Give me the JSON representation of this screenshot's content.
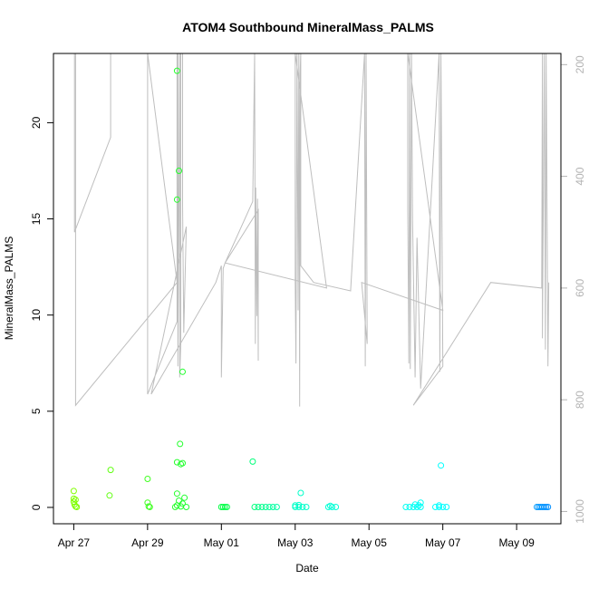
{
  "chart_data": {
    "type": "scatter",
    "title": "ATOM4 Southbound MineralMass_PALMS",
    "xlabel": "Date",
    "ylabel": "MineralMass_PALMS",
    "x_ticks": [
      "Apr 27",
      "Apr 29",
      "May 01",
      "May 03",
      "May 05",
      "May 07",
      "May 09"
    ],
    "x_tick_days": [
      0,
      2,
      4,
      6,
      8,
      10,
      12
    ],
    "xlim_days": [
      -0.55,
      13.2
    ],
    "ylim": [
      -0.85,
      23.6
    ],
    "y_ticks": [
      0,
      5,
      10,
      15,
      20
    ],
    "secondary_axis": {
      "ticks": [
        200,
        400,
        600,
        800,
        1000
      ],
      "ylim": [
        1022,
        180
      ],
      "color": "#bebebe"
    },
    "altitude_line": [
      [
        0.02,
        180
      ],
      [
        0.02,
        500
      ],
      [
        1.0,
        330
      ],
      [
        1.0,
        180
      ],
      [
        1.0,
        180
      ],
      [
        1.0,
        180
      ],
      [
        0.05,
        180
      ],
      [
        0.05,
        810
      ],
      [
        2.8,
        590
      ],
      [
        2.8,
        590
      ],
      [
        2.0,
        180
      ],
      [
        2.0,
        180
      ],
      [
        2.0,
        610
      ],
      [
        2.0,
        790
      ],
      [
        2.8,
        660
      ],
      [
        2.8,
        180
      ],
      [
        2.82,
        180
      ],
      [
        2.82,
        740
      ],
      [
        2.87,
        180
      ],
      [
        2.87,
        760
      ],
      [
        2.9,
        700
      ],
      [
        2.9,
        180
      ],
      [
        2.95,
        180
      ],
      [
        2.95,
        450
      ],
      [
        2.98,
        680
      ],
      [
        3.05,
        490
      ],
      [
        2.1,
        790
      ],
      [
        3.85,
        590
      ],
      [
        4.0,
        560
      ],
      [
        4.0,
        760
      ],
      [
        4.05,
        565
      ],
      [
        4.1,
        555
      ],
      [
        4.85,
        445
      ],
      [
        4.9,
        180
      ],
      [
        4.9,
        180
      ],
      [
        4.92,
        700
      ],
      [
        4.93,
        420
      ],
      [
        4.96,
        650
      ],
      [
        4.98,
        440
      ],
      [
        5.0,
        730
      ],
      [
        5.0,
        460
      ],
      [
        4.1,
        555
      ],
      [
        6.85,
        600
      ],
      [
        6.0,
        180
      ],
      [
        6.0,
        590
      ],
      [
        6.02,
        735
      ],
      [
        6.05,
        170
      ],
      [
        6.05,
        180
      ],
      [
        6.08,
        640
      ],
      [
        6.1,
        180
      ],
      [
        6.12,
        812
      ],
      [
        6.13,
        220
      ],
      [
        6.15,
        180
      ],
      [
        6.15,
        560
      ],
      [
        6.5,
        590
      ],
      [
        7.5,
        605
      ],
      [
        7.88,
        180
      ],
      [
        7.9,
        740
      ],
      [
        7.92,
        180
      ],
      [
        7.95,
        700
      ],
      [
        7.8,
        590
      ],
      [
        10.0,
        640
      ],
      [
        9.05,
        180
      ],
      [
        9.05,
        460
      ],
      [
        9.08,
        735
      ],
      [
        9.1,
        180
      ],
      [
        9.12,
        745
      ],
      [
        9.15,
        180
      ],
      [
        9.18,
        480
      ],
      [
        9.25,
        760
      ],
      [
        9.3,
        510
      ],
      [
        9.4,
        780
      ],
      [
        9.9,
        180
      ],
      [
        9.92,
        750
      ],
      [
        9.95,
        180
      ],
      [
        10.0,
        740
      ],
      [
        9.2,
        810
      ],
      [
        11.3,
        590
      ],
      [
        12.68,
        600
      ],
      [
        12.7,
        180
      ],
      [
        12.7,
        690
      ],
      [
        12.75,
        180
      ],
      [
        12.78,
        710
      ],
      [
        12.8,
        180
      ],
      [
        12.85,
        740
      ],
      [
        12.87,
        590
      ]
    ],
    "points": [
      [
        0.0,
        0.85
      ],
      [
        0.0,
        0.45
      ],
      [
        0.0,
        0.3
      ],
      [
        0.02,
        0.15
      ],
      [
        0.05,
        0.05
      ],
      [
        0.05,
        0.4
      ],
      [
        0.08,
        0.02
      ],
      [
        1.0,
        1.95
      ],
      [
        0.97,
        0.62
      ],
      [
        2.0,
        1.48
      ],
      [
        2.0,
        0.25
      ],
      [
        2.03,
        0.05
      ],
      [
        2.06,
        0.02
      ],
      [
        2.8,
        22.7
      ],
      [
        2.85,
        17.5
      ],
      [
        2.8,
        16.0
      ],
      [
        2.95,
        7.05
      ],
      [
        2.88,
        3.3
      ],
      [
        2.8,
        2.35
      ],
      [
        2.9,
        2.25
      ],
      [
        2.95,
        2.3
      ],
      [
        2.8,
        0.72
      ],
      [
        3.0,
        0.5
      ],
      [
        2.85,
        0.35
      ],
      [
        2.95,
        0.2
      ],
      [
        2.8,
        0.1
      ],
      [
        2.9,
        0.05
      ],
      [
        3.05,
        0.02
      ],
      [
        2.75,
        0.02
      ],
      [
        4.0,
        0.02
      ],
      [
        4.05,
        0.02
      ],
      [
        4.1,
        0.02
      ],
      [
        4.15,
        0.02
      ],
      [
        4.85,
        2.38
      ],
      [
        4.9,
        0.02
      ],
      [
        5.0,
        0.02
      ],
      [
        5.1,
        0.02
      ],
      [
        5.2,
        0.02
      ],
      [
        5.3,
        0.02
      ],
      [
        5.4,
        0.02
      ],
      [
        5.5,
        0.02
      ],
      [
        6.0,
        0.02
      ],
      [
        6.1,
        0.02
      ],
      [
        6.2,
        0.02
      ],
      [
        6.3,
        0.02
      ],
      [
        6.1,
        0.12
      ],
      [
        6.15,
        0.75
      ],
      [
        6.0,
        0.1
      ],
      [
        6.9,
        0.02
      ],
      [
        7.0,
        0.02
      ],
      [
        7.1,
        0.02
      ],
      [
        6.95,
        0.08
      ],
      [
        9.0,
        0.02
      ],
      [
        9.1,
        0.02
      ],
      [
        9.2,
        0.02
      ],
      [
        9.3,
        0.02
      ],
      [
        9.4,
        0.02
      ],
      [
        9.25,
        0.15
      ],
      [
        9.4,
        0.25
      ],
      [
        9.35,
        0.1
      ],
      [
        9.8,
        0.02
      ],
      [
        9.9,
        0.02
      ],
      [
        10.0,
        0.02
      ],
      [
        10.1,
        0.02
      ],
      [
        9.95,
        2.18
      ],
      [
        9.9,
        0.1
      ],
      [
        12.55,
        0.02
      ],
      [
        12.6,
        0.02
      ],
      [
        12.65,
        0.02
      ],
      [
        12.7,
        0.02
      ],
      [
        12.75,
        0.02
      ],
      [
        12.8,
        0.02
      ],
      [
        12.85,
        0.02
      ]
    ],
    "grid": false,
    "legend": "none"
  }
}
